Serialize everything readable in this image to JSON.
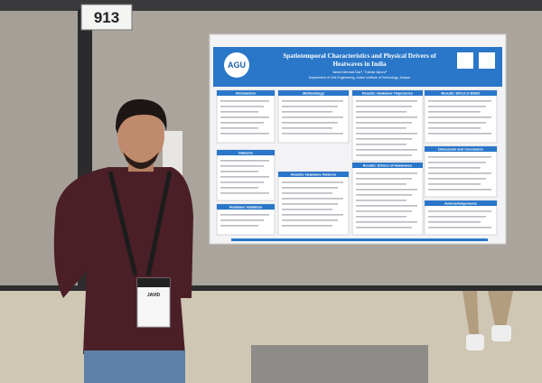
{
  "booth_number": "913",
  "poster": {
    "logo": "AGU",
    "title_lines": [
      "Spatiotemporal Characteristics and Physical Drivers of",
      "Heatwaves in India"
    ],
    "authors": "Javed Ahmad Dar¹, Tushar Apurv¹",
    "affiliation": "Department of Civil Engineering, Indian Institute of Technology, Kanpur",
    "sections": [
      "Introduction",
      "Methodology",
      "Results: Heatwave Trajectories",
      "Results: Effect of ENSO",
      "Datasets",
      "Results: Heatwave Patterns",
      "Results: Drivers of Heatwaves",
      "Discussion and Conclusion",
      "Heatwave Validation",
      "Acknowledgements"
    ]
  },
  "badge": {
    "name": "JAVID"
  }
}
